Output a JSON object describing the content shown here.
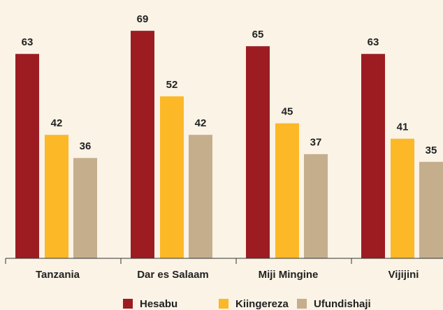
{
  "chart_data": {
    "type": "bar",
    "categories": [
      "Tanzania",
      "Dar es Salaam",
      "Miji Mingine",
      "Vijijini"
    ],
    "series": [
      {
        "name": "Hesabu",
        "color": "#9c1c22",
        "values": [
          63,
          69,
          65,
          63
        ]
      },
      {
        "name": "Kiingereza",
        "color": "#fdb827",
        "values": [
          42,
          52,
          45,
          41
        ]
      },
      {
        "name": "Ufundishaji",
        "color": "#c5ae8c",
        "values": [
          36,
          42,
          37,
          35
        ]
      }
    ]
  }
}
